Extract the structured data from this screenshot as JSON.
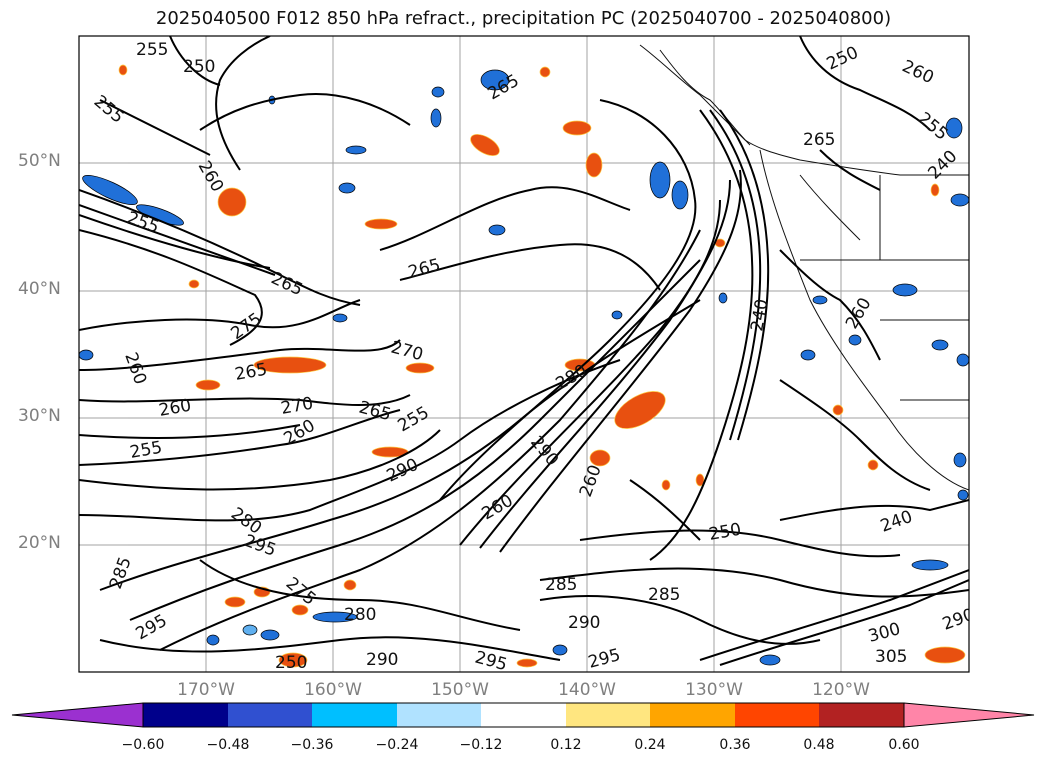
{
  "title": "2025040500 F012 850 hPa refract., precipitation PC (2025040700 - 2025040800)",
  "lat_labels": [
    "50°N",
    "40°N",
    "30°N",
    "20°N"
  ],
  "lon_labels": [
    "170°W",
    "160°W",
    "150°W",
    "140°W",
    "130°W",
    "120°W"
  ],
  "contour_labels": [
    "255",
    "250",
    "255",
    "260",
    "265",
    "265",
    "270",
    "265",
    "275",
    "260",
    "265",
    "260",
    "270",
    "265",
    "260",
    "255",
    "255",
    "280",
    "290",
    "260",
    "290",
    "280",
    "260",
    "295",
    "275",
    "285",
    "280",
    "295",
    "290",
    "290",
    "295",
    "295",
    "285",
    "240",
    "250",
    "240",
    "260",
    "255",
    "265",
    "250",
    "240",
    "300",
    "305",
    "290",
    "285",
    "260",
    "250",
    "255"
  ],
  "colorbar": {
    "ticks": [
      "−0.60",
      "−0.48",
      "−0.36",
      "−0.24",
      "−0.12",
      "0.12",
      "0.24",
      "0.36",
      "0.48",
      "0.60"
    ],
    "colors": [
      "#9b30d0",
      "#00008b",
      "#3050d0",
      "#00bfff",
      "#b0e2ff",
      "#ffffff",
      "#ffe680",
      "#ffa500",
      "#ff4500",
      "#b22222",
      "#ff85a8",
      "#ff85a8"
    ]
  },
  "colors": {
    "negative_precip": "#2070d8",
    "negative_precip_light": "#60b0f0",
    "positive_precip": "#e85010",
    "positive_precip_light": "#ffc840",
    "grid": "#8c8c8c"
  }
}
